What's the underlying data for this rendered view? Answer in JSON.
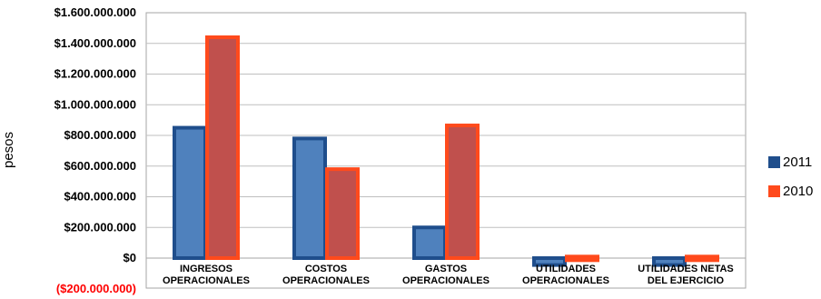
{
  "chart_data": {
    "type": "bar",
    "title": "",
    "xlabel": "",
    "ylabel": "pesos",
    "ylim": [
      -200000000,
      1600000000
    ],
    "yticks": [
      {
        "value": 1600000000,
        "label": "$1.600.000.000",
        "color": "#000000"
      },
      {
        "value": 1400000000,
        "label": "$1.400.000.000",
        "color": "#000000"
      },
      {
        "value": 1200000000,
        "label": "$1.200.000.000",
        "color": "#000000"
      },
      {
        "value": 1000000000,
        "label": "$1.000.000.000",
        "color": "#000000"
      },
      {
        "value": 800000000,
        "label": "$800.000.000",
        "color": "#000000"
      },
      {
        "value": 600000000,
        "label": "$600.000.000",
        "color": "#000000"
      },
      {
        "value": 400000000,
        "label": "$400.000.000",
        "color": "#000000"
      },
      {
        "value": 200000000,
        "label": "$200.000.000",
        "color": "#000000"
      },
      {
        "value": 0,
        "label": "$0",
        "color": "#000000"
      },
      {
        "value": -200000000,
        "label": "($200.000.000)",
        "color": "#ff0000"
      }
    ],
    "categories": [
      [
        "INGRESOS",
        "OPERACIONALES"
      ],
      [
        "COSTOS",
        "OPERACIONALES"
      ],
      [
        "GASTOS",
        "OPERACIONALES"
      ],
      [
        "UTILIDADES",
        "OPERACIONALES"
      ],
      [
        "UTILIDADES NETAS",
        "DEL EJERCICIO"
      ]
    ],
    "series": [
      {
        "name": "2011",
        "values": [
          850000000,
          780000000,
          200000000,
          -45000000,
          -45000000
        ],
        "fill": "#4f81bd",
        "edge": "#1f4e8c"
      },
      {
        "name": "2010",
        "values": [
          1440000000,
          580000000,
          865000000,
          10000000,
          10000000
        ],
        "fill": "#c0504d",
        "edge": "#ff4a1c"
      }
    ],
    "grid": true,
    "legend_position": "right"
  }
}
